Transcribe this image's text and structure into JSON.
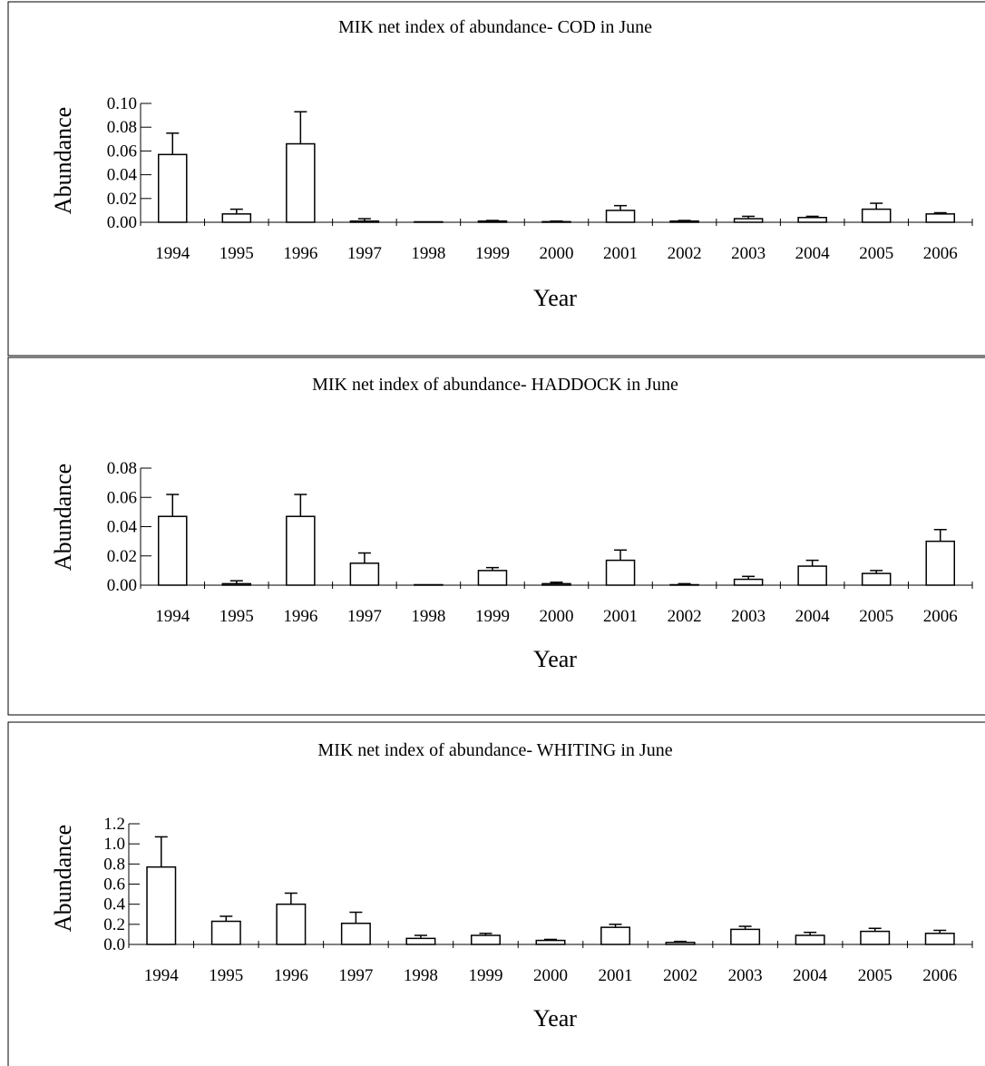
{
  "chart_data": [
    {
      "type": "bar",
      "title": "MIK net index of abundance- COD in June",
      "xlabel": "Year",
      "ylabel": "Abundance",
      "categories": [
        "1994",
        "1995",
        "1996",
        "1997",
        "1998",
        "1999",
        "2000",
        "2001",
        "2002",
        "2003",
        "2004",
        "2005",
        "2006"
      ],
      "values": [
        0.057,
        0.007,
        0.066,
        0.001,
        0.0,
        0.001,
        0.0005,
        0.01,
        0.001,
        0.003,
        0.004,
        0.011,
        0.007
      ],
      "errors": [
        0.018,
        0.004,
        0.027,
        0.002,
        0.0,
        0.0005,
        0.0005,
        0.004,
        0.0005,
        0.002,
        0.001,
        0.005,
        0.001
      ],
      "ylim": [
        0,
        0.1
      ],
      "yticks": [
        "0.00",
        "0.02",
        "0.04",
        "0.06",
        "0.08",
        "0.10"
      ]
    },
    {
      "type": "bar",
      "title": "MIK net index of abundance- HADDOCK in June",
      "xlabel": "Year",
      "ylabel": "Abundance",
      "categories": [
        "1994",
        "1995",
        "1996",
        "1997",
        "1998",
        "1999",
        "2000",
        "2001",
        "2002",
        "2003",
        "2004",
        "2005",
        "2006"
      ],
      "values": [
        0.047,
        0.001,
        0.047,
        0.015,
        0.0,
        0.01,
        0.001,
        0.017,
        0.0,
        0.004,
        0.013,
        0.008,
        0.03
      ],
      "errors": [
        0.015,
        0.002,
        0.015,
        0.007,
        0.0,
        0.002,
        0.001,
        0.007,
        0.001,
        0.002,
        0.004,
        0.002,
        0.008
      ],
      "ylim": [
        0,
        0.08
      ],
      "yticks": [
        "0.00",
        "0.02",
        "0.04",
        "0.06",
        "0.08"
      ]
    },
    {
      "type": "bar",
      "title": "MIK net index of abundance- WHITING in June",
      "xlabel": "Year",
      "ylabel": "Abundance",
      "categories": [
        "1994",
        "1995",
        "1996",
        "1997",
        "1998",
        "1999",
        "2000",
        "2001",
        "2002",
        "2003",
        "2004",
        "2005",
        "2006"
      ],
      "values": [
        0.77,
        0.23,
        0.4,
        0.21,
        0.06,
        0.09,
        0.04,
        0.17,
        0.02,
        0.15,
        0.09,
        0.13,
        0.11
      ],
      "errors": [
        0.3,
        0.05,
        0.11,
        0.11,
        0.03,
        0.02,
        0.01,
        0.03,
        0.01,
        0.03,
        0.03,
        0.03,
        0.03
      ],
      "ylim": [
        0,
        1.2
      ],
      "yticks": [
        "0.0",
        "0.2",
        "0.4",
        "0.6",
        "0.8",
        "1.0",
        "1.2"
      ]
    }
  ]
}
